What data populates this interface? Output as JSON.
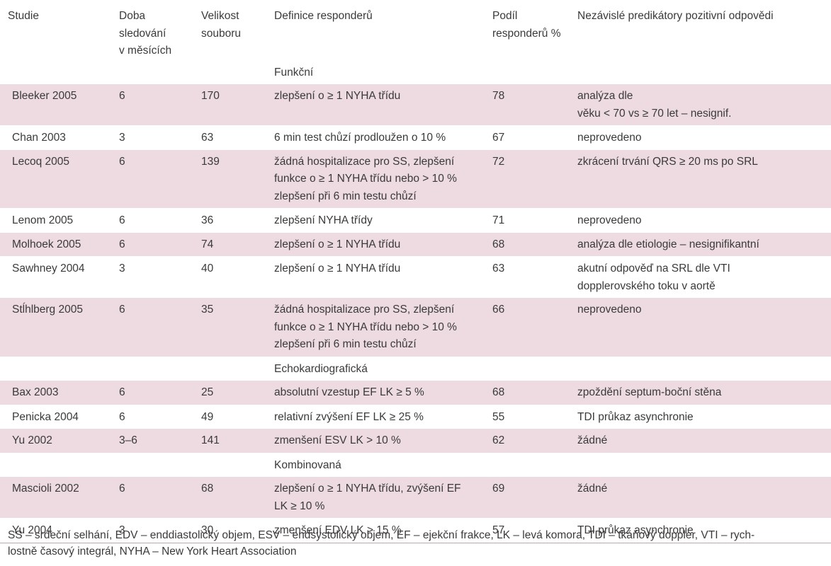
{
  "table": {
    "headers": [
      "Studie",
      "Doba\nsledování\nv měsících",
      "Velikost\nsouboru",
      "Definice responderů",
      "Podíl\nresponderů %",
      "Nezávislé predikátory pozitivní odpovědi"
    ],
    "sections": {
      "funkcni": "Funkční",
      "echo": "Echokardiografická",
      "kombinovana": "Kombinovaná"
    },
    "rows": [
      {
        "study": "Bleeker 2005",
        "followup": "6",
        "size": "170",
        "definition": "zlepšení o ≥ 1 NYHA třídu",
        "share": "78",
        "predictors": "analýza dle\nvěku < 70 vs ≥ 70 let – nesignif."
      },
      {
        "study": "Chan 2003",
        "followup": "3",
        "size": "63",
        "definition": "6 min test chůzí prodloužen o 10 %",
        "share": "67",
        "predictors": "neprovedeno"
      },
      {
        "study": "Lecoq 2005",
        "followup": "6",
        "size": "139",
        "definition": "žádná hospitalizace pro SS, zlepšení\nfunkce o ≥ 1 NYHA třídu nebo > 10 %\nzlepšení při 6 min testu chůzí",
        "share": "72",
        "predictors": "zkrácení trvání QRS ≥ 20 ms po SRL"
      },
      {
        "study": "Lenom 2005",
        "followup": "6",
        "size": "36",
        "definition": "zlepšení NYHA třídy",
        "share": "71",
        "predictors": "neprovedeno"
      },
      {
        "study": "Molhoek 2005",
        "followup": "6",
        "size": "74",
        "definition": "zlepšení o ≥ 1 NYHA třídu",
        "share": "68",
        "predictors": "analýza dle etiologie – nesignifikantní"
      },
      {
        "study": "Sawhney 2004",
        "followup": "3",
        "size": "40",
        "definition": "zlepšení o ≥ 1 NYHA třídu",
        "share": "63",
        "predictors": "akutní odpověď na SRL dle VTI\ndopplerovského toku v aortě"
      },
      {
        "study": "Stĺhlberg 2005",
        "followup": "6",
        "size": "35",
        "definition": "žádná hospitalizace pro SS, zlepšení\nfunkce o ≥ 1 NYHA třídu nebo > 10 %\nzlepšení při 6 min testu chůzí",
        "share": "66",
        "predictors": "neprovedeno"
      },
      {
        "study": "Bax 2003",
        "followup": "6",
        "size": "25",
        "definition": "absolutní vzestup EF LK ≥ 5 %",
        "share": "68",
        "predictors": "zpoždění septum-boční stěna"
      },
      {
        "study": "Penicka 2004",
        "followup": "6",
        "size": "49",
        "definition": "relativní zvýšení EF LK ≥ 25 %",
        "share": "55",
        "predictors": "TDI průkaz asynchronie"
      },
      {
        "study": "Yu 2002",
        "followup": "3–6",
        "size": "141",
        "definition": "zmenšení ESV LK > 10 %",
        "share": "62",
        "predictors": "žádné"
      },
      {
        "study": "Mascioli 2002",
        "followup": "6",
        "size": "68",
        "definition": "zlepšení o ≥ 1 NYHA třídu, zvýšení EF\nLK ≥ 10 %",
        "share": "69",
        "predictors": "žádné"
      },
      {
        "study": "Yu 2004",
        "followup": "3",
        "size": "30",
        "definition": "zmenšení EDV LK > 15 %",
        "share": "57",
        "predictors": "TDI průkaz asynchronie"
      }
    ]
  },
  "footnote": "SS – srdeční selhání, EDV – enddiastolický objem, ESV – endsystolický objem, EF – ejekční frakce, LK – levá komora, TDI – tkáňový doppler, VTI – rych-\nlostně časový integrál, NYHA – New York Heart Association",
  "colors": {
    "row_fill": "#eddbe1",
    "text": "#3a3a3a"
  }
}
